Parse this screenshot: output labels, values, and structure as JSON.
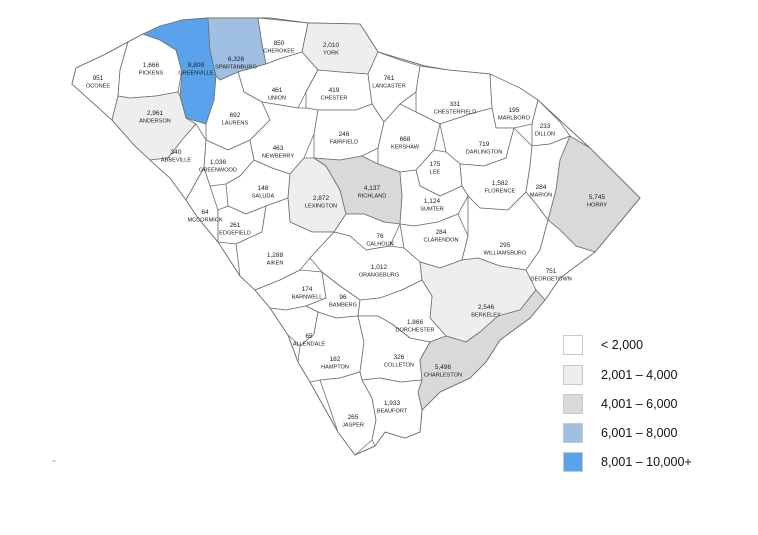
{
  "legend": [
    {
      "label": "< 2,000",
      "color": "#ffffff"
    },
    {
      "label": "2,001 – 4,000",
      "color": "#eeeeee"
    },
    {
      "label": "4,001 – 6,000",
      "color": "#d9d9d9"
    },
    {
      "label": "6,001 – 8,000",
      "color": "#9fc0e3"
    },
    {
      "label": "8,001 – 10,000+",
      "color": "#5aa3ec"
    }
  ],
  "note": "sc",
  "counties": [
    {
      "name": "OCONEE",
      "value": "951",
      "tier": 0
    },
    {
      "name": "PICKENS",
      "value": "1,666",
      "tier": 0
    },
    {
      "name": "GREENVILLE",
      "value": "8,809",
      "tier": 4
    },
    {
      "name": "SPARTANBURG",
      "value": "6,326",
      "tier": 3
    },
    {
      "name": "CHEROKEE",
      "value": "850",
      "tier": 0
    },
    {
      "name": "YORK",
      "value": "2,010",
      "tier": 1
    },
    {
      "name": "UNION",
      "value": "461",
      "tier": 0
    },
    {
      "name": "CHESTER",
      "value": "419",
      "tier": 0
    },
    {
      "name": "LANCASTER",
      "value": "761",
      "tier": 0
    },
    {
      "name": "CHESTERFIELD",
      "value": "331",
      "tier": 0
    },
    {
      "name": "MARLBORO",
      "value": "195",
      "tier": 0
    },
    {
      "name": "DILLON",
      "value": "233",
      "tier": 0
    },
    {
      "name": "ANDERSON",
      "value": "2,961",
      "tier": 1
    },
    {
      "name": "LAURENS",
      "value": "692",
      "tier": 0
    },
    {
      "name": "ABBEVILLE",
      "value": "340",
      "tier": 0
    },
    {
      "name": "GREENWOOD",
      "value": "1,036",
      "tier": 0
    },
    {
      "name": "NEWBERRY",
      "value": "463",
      "tier": 0
    },
    {
      "name": "FAIRFIELD",
      "value": "246",
      "tier": 0
    },
    {
      "name": "KERSHAW",
      "value": "668",
      "tier": 0
    },
    {
      "name": "DARLINGTON",
      "value": "719",
      "tier": 0
    },
    {
      "name": "LEE",
      "value": "175",
      "tier": 0
    },
    {
      "name": "FLORENCE",
      "value": "1,582",
      "tier": 0
    },
    {
      "name": "MARION",
      "value": "284",
      "tier": 0
    },
    {
      "name": "HORRY",
      "value": "5,745",
      "tier": 2
    },
    {
      "name": "MCCORMICK",
      "value": "64",
      "tier": 0
    },
    {
      "name": "SALUDA",
      "value": "148",
      "tier": 0
    },
    {
      "name": "LEXINGTON",
      "value": "2,872",
      "tier": 1
    },
    {
      "name": "RICHLAND",
      "value": "4,137",
      "tier": 2
    },
    {
      "name": "SUMTER",
      "value": "1,124",
      "tier": 0
    },
    {
      "name": "EDGEFIELD",
      "value": "261",
      "tier": 0
    },
    {
      "name": "CALHOUN",
      "value": "76",
      "tier": 0
    },
    {
      "name": "CLARENDON",
      "value": "284",
      "tier": 0
    },
    {
      "name": "WILLIAMSBURG",
      "value": "295",
      "tier": 0
    },
    {
      "name": "GEORGETOWN",
      "value": "751",
      "tier": 0
    },
    {
      "name": "AIKEN",
      "value": "1,288",
      "tier": 0
    },
    {
      "name": "ORANGEBURG",
      "value": "1,012",
      "tier": 0
    },
    {
      "name": "BARNWELL",
      "value": "174",
      "tier": 0
    },
    {
      "name": "BAMBERG",
      "value": "96",
      "tier": 0
    },
    {
      "name": "BERKELEY",
      "value": "2,546",
      "tier": 1
    },
    {
      "name": "DORCHESTER",
      "value": "1,866",
      "tier": 0
    },
    {
      "name": "ALLENDALE",
      "value": "65",
      "tier": 0
    },
    {
      "name": "HAMPTON",
      "value": "182",
      "tier": 0
    },
    {
      "name": "COLLETON",
      "value": "326",
      "tier": 0
    },
    {
      "name": "CHARLESTON",
      "value": "5,496",
      "tier": 2
    },
    {
      "name": "JASPER",
      "value": "265",
      "tier": 0
    },
    {
      "name": "BEAUFORT",
      "value": "1,933",
      "tier": 0
    }
  ]
}
